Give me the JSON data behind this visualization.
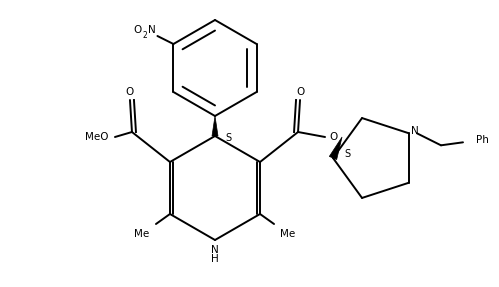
{
  "bg": "#ffffff",
  "lw": 1.4,
  "fs": 7.5,
  "figsize": [
    4.99,
    2.87
  ],
  "dpi": 100,
  "xlim": [
    0,
    499
  ],
  "ylim": [
    0,
    287
  ]
}
